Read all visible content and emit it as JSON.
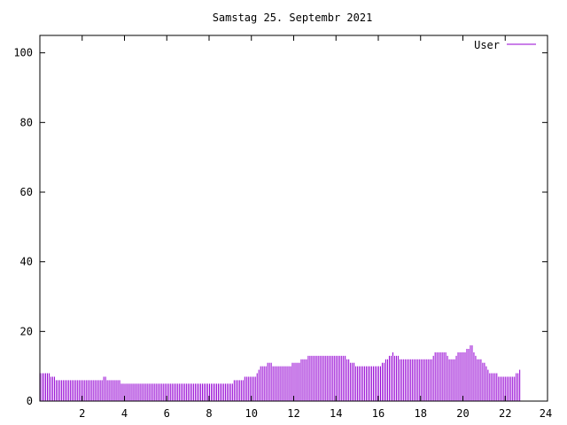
{
  "chart_data": {
    "type": "bar",
    "title": "Samstag 25. Septembr 2021",
    "xlabel": "",
    "ylabel": "",
    "xlim": [
      0,
      24
    ],
    "ylim": [
      0,
      105
    ],
    "x_ticks": [
      2,
      4,
      6,
      8,
      10,
      12,
      14,
      16,
      18,
      20,
      22,
      24
    ],
    "y_ticks": [
      0,
      20,
      40,
      60,
      80,
      100
    ],
    "grid": false,
    "legend_position": "top-right",
    "series": [
      {
        "name": "User",
        "color": "#9400d3",
        "interval_minutes": 5,
        "values": [
          8,
          8,
          8,
          8,
          8,
          8,
          7,
          7,
          7,
          6,
          6,
          6,
          6,
          6,
          6,
          6,
          6,
          6,
          6,
          6,
          6,
          6,
          6,
          6,
          6,
          6,
          6,
          6,
          6,
          6,
          6,
          6,
          6,
          6,
          6,
          6,
          7,
          7,
          6,
          6,
          6,
          6,
          6,
          6,
          6,
          6,
          5,
          5,
          5,
          5,
          5,
          5,
          5,
          5,
          5,
          5,
          5,
          5,
          5,
          5,
          5,
          5,
          5,
          5,
          5,
          5,
          5,
          5,
          5,
          5,
          5,
          5,
          5,
          5,
          5,
          5,
          5,
          5,
          5,
          5,
          5,
          5,
          5,
          5,
          5,
          5,
          5,
          5,
          5,
          5,
          5,
          5,
          5,
          5,
          5,
          5,
          5,
          5,
          5,
          5,
          5,
          5,
          5,
          5,
          5,
          5,
          5,
          5,
          5,
          5,
          6,
          6,
          6,
          6,
          6,
          6,
          7,
          7,
          7,
          7,
          7,
          7,
          7,
          8,
          9,
          10,
          10,
          10,
          10,
          11,
          11,
          11,
          10,
          10,
          10,
          10,
          10,
          10,
          10,
          10,
          10,
          10,
          10,
          11,
          11,
          11,
          11,
          11,
          12,
          12,
          12,
          12,
          13,
          13,
          13,
          13,
          13,
          13,
          13,
          13,
          13,
          13,
          13,
          13,
          13,
          13,
          13,
          13,
          13,
          13,
          13,
          13,
          13,
          13,
          12,
          12,
          11,
          11,
          11,
          10,
          10,
          10,
          10,
          10,
          10,
          10,
          10,
          10,
          10,
          10,
          10,
          10,
          10,
          10,
          11,
          11,
          12,
          12,
          13,
          13,
          14,
          13,
          13,
          13,
          12,
          12,
          12,
          12,
          12,
          12,
          12,
          12,
          12,
          12,
          12,
          12,
          12,
          12,
          12,
          12,
          12,
          12,
          12,
          13,
          14,
          14,
          14,
          14,
          14,
          14,
          14,
          13,
          12,
          12,
          12,
          12,
          13,
          14,
          14,
          14,
          14,
          14,
          15,
          15,
          16,
          16,
          14,
          13,
          12,
          12,
          12,
          11,
          11,
          10,
          9,
          8,
          8,
          8,
          8,
          8,
          7,
          7,
          7,
          7,
          7,
          7,
          7,
          7,
          7,
          7,
          8,
          8,
          9
        ]
      }
    ]
  }
}
